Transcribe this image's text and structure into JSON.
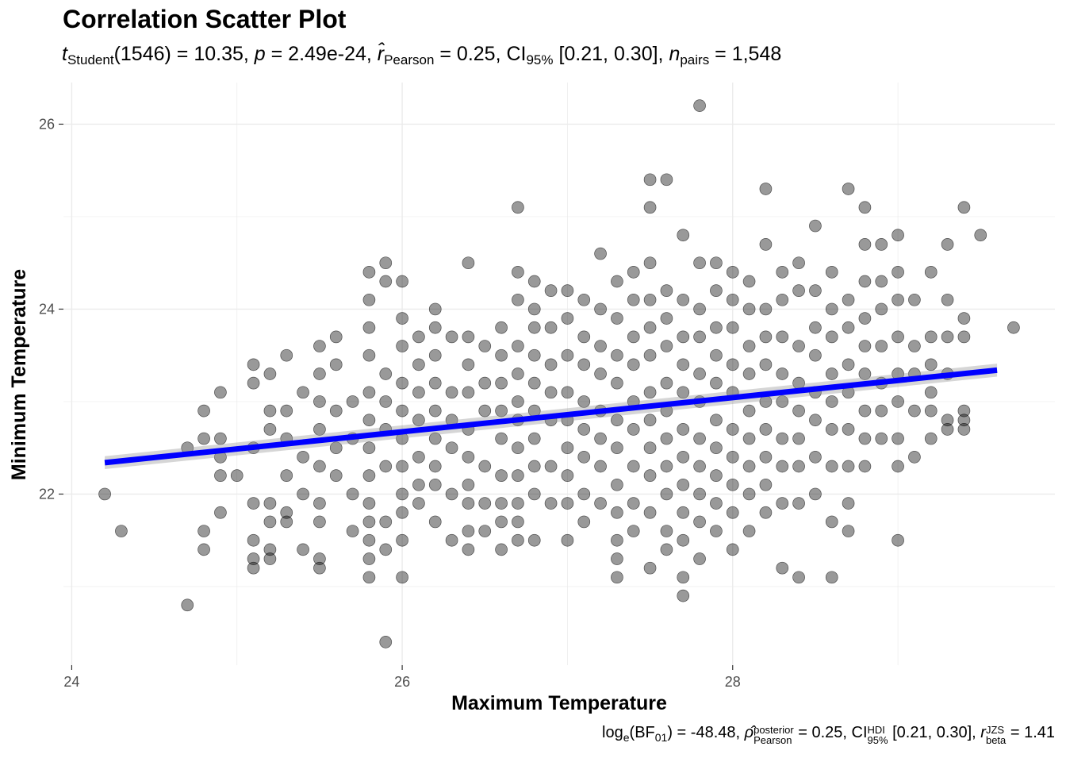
{
  "chart_data": {
    "type": "scatter",
    "title": "Correlation Scatter Plot",
    "subtitle": {
      "t_symbol": "t",
      "t_sub": "Student",
      "df": "(1546)",
      "t_value": " = 10.35, ",
      "p_symbol": "p",
      "p_value": " = 2.49e-24, ",
      "r_symbol": "r̂",
      "r_sub": "Pearson",
      "r_value": " = 0.25, CI",
      "ci_sub": "95%",
      "ci_value": " [0.21, 0.30], ",
      "n_symbol": "n",
      "n_sub": "pairs",
      "n_value": " = 1,548"
    },
    "caption": {
      "log_text": "log",
      "log_sub": "e",
      "bf_text": "(BF",
      "bf_sub": "01",
      "bf_value": ") = -48.48, ",
      "rho_symbol": "ρ̂",
      "rho_sup": "posterior",
      "rho_sub": "Pearson",
      "rho_value": " = 0.25, CI",
      "ci_sup": "HDI",
      "ci_sub": "95%",
      "ci_value": " [0.21, 0.30], ",
      "r_symbol": "r",
      "r_sup": "JZS",
      "r_sub": "beta",
      "r_value": " = 1.41"
    },
    "xlabel": "Maximum Temperature",
    "ylabel": "Minimum Temperature",
    "xlim": [
      23.95,
      29.95
    ],
    "ylim": [
      20.15,
      26.45
    ],
    "x_ticks": [
      24,
      26,
      28
    ],
    "y_ticks": [
      22,
      24,
      26
    ],
    "x_tick_labels": [
      "24",
      "26",
      "28"
    ],
    "y_tick_labels": [
      "22",
      "24",
      "26"
    ],
    "grid": true,
    "fit_line": {
      "x_start": 24.2,
      "y_start": 22.34,
      "x_end": 29.6,
      "y_end": 23.34,
      "ci_halfwidth": 0.07,
      "color": "#0000ff"
    },
    "point_color": "#000000",
    "point_opacity": 0.4,
    "point_count": 1548,
    "points": [
      [
        24.2,
        22.0
      ],
      [
        24.3,
        21.6
      ],
      [
        24.7,
        20.8
      ],
      [
        24.7,
        22.5
      ],
      [
        24.8,
        22.9
      ],
      [
        24.8,
        22.6
      ],
      [
        24.8,
        21.6
      ],
      [
        24.8,
        21.4
      ],
      [
        24.9,
        23.1
      ],
      [
        24.9,
        22.6
      ],
      [
        24.9,
        22.4
      ],
      [
        24.9,
        22.2
      ],
      [
        24.9,
        21.8
      ],
      [
        25.0,
        22.2
      ],
      [
        25.1,
        23.4
      ],
      [
        25.1,
        23.2
      ],
      [
        25.1,
        22.5
      ],
      [
        25.1,
        21.9
      ],
      [
        25.1,
        21.5
      ],
      [
        25.1,
        21.3
      ],
      [
        25.1,
        21.2
      ],
      [
        25.2,
        23.3
      ],
      [
        25.2,
        22.9
      ],
      [
        25.2,
        22.7
      ],
      [
        25.2,
        21.9
      ],
      [
        25.2,
        21.7
      ],
      [
        25.2,
        21.4
      ],
      [
        25.2,
        21.3
      ],
      [
        25.3,
        23.5
      ],
      [
        25.3,
        22.9
      ],
      [
        25.3,
        22.6
      ],
      [
        25.3,
        22.2
      ],
      [
        25.3,
        21.8
      ],
      [
        25.3,
        21.7
      ],
      [
        25.4,
        23.1
      ],
      [
        25.4,
        22.4
      ],
      [
        25.4,
        22.0
      ],
      [
        25.4,
        21.4
      ],
      [
        25.5,
        23.6
      ],
      [
        25.5,
        23.3
      ],
      [
        25.5,
        23.0
      ],
      [
        25.5,
        22.7
      ],
      [
        25.5,
        22.3
      ],
      [
        25.5,
        21.9
      ],
      [
        25.5,
        21.7
      ],
      [
        25.5,
        21.3
      ],
      [
        25.5,
        21.2
      ],
      [
        25.6,
        23.7
      ],
      [
        25.6,
        23.4
      ],
      [
        25.6,
        22.9
      ],
      [
        25.6,
        22.5
      ],
      [
        25.6,
        22.2
      ],
      [
        25.7,
        23.0
      ],
      [
        25.7,
        22.6
      ],
      [
        25.7,
        22.0
      ],
      [
        25.7,
        21.6
      ],
      [
        25.8,
        24.4
      ],
      [
        25.8,
        24.1
      ],
      [
        25.8,
        23.8
      ],
      [
        25.8,
        23.5
      ],
      [
        25.8,
        23.1
      ],
      [
        25.8,
        22.8
      ],
      [
        25.8,
        22.5
      ],
      [
        25.8,
        22.2
      ],
      [
        25.8,
        21.9
      ],
      [
        25.8,
        21.7
      ],
      [
        25.8,
        21.5
      ],
      [
        25.8,
        21.3
      ],
      [
        25.8,
        21.1
      ],
      [
        25.9,
        24.5
      ],
      [
        25.9,
        24.3
      ],
      [
        25.9,
        23.3
      ],
      [
        25.9,
        23.0
      ],
      [
        25.9,
        22.7
      ],
      [
        25.9,
        22.3
      ],
      [
        25.9,
        21.7
      ],
      [
        25.9,
        21.4
      ],
      [
        25.9,
        20.4
      ],
      [
        26.0,
        24.3
      ],
      [
        26.0,
        23.9
      ],
      [
        26.0,
        23.6
      ],
      [
        26.0,
        23.2
      ],
      [
        26.0,
        22.9
      ],
      [
        26.0,
        22.6
      ],
      [
        26.0,
        22.3
      ],
      [
        26.0,
        22.0
      ],
      [
        26.0,
        21.8
      ],
      [
        26.0,
        21.5
      ],
      [
        26.0,
        21.1
      ],
      [
        26.1,
        23.7
      ],
      [
        26.1,
        23.4
      ],
      [
        26.1,
        23.1
      ],
      [
        26.1,
        22.8
      ],
      [
        26.1,
        22.4
      ],
      [
        26.1,
        22.1
      ],
      [
        26.1,
        21.9
      ],
      [
        26.2,
        24.0
      ],
      [
        26.2,
        23.8
      ],
      [
        26.2,
        23.5
      ],
      [
        26.2,
        23.2
      ],
      [
        26.2,
        22.9
      ],
      [
        26.2,
        22.6
      ],
      [
        26.2,
        22.3
      ],
      [
        26.2,
        22.1
      ],
      [
        26.2,
        21.7
      ],
      [
        26.3,
        23.7
      ],
      [
        26.3,
        23.1
      ],
      [
        26.3,
        22.8
      ],
      [
        26.3,
        22.5
      ],
      [
        26.3,
        22.0
      ],
      [
        26.3,
        21.5
      ],
      [
        26.4,
        24.5
      ],
      [
        26.4,
        23.7
      ],
      [
        26.4,
        23.4
      ],
      [
        26.4,
        23.1
      ],
      [
        26.4,
        22.7
      ],
      [
        26.4,
        22.4
      ],
      [
        26.4,
        22.1
      ],
      [
        26.4,
        21.9
      ],
      [
        26.4,
        21.6
      ],
      [
        26.4,
        21.4
      ],
      [
        26.5,
        23.6
      ],
      [
        26.5,
        23.2
      ],
      [
        26.5,
        22.9
      ],
      [
        26.5,
        22.3
      ],
      [
        26.5,
        21.9
      ],
      [
        26.5,
        21.6
      ],
      [
        26.6,
        23.8
      ],
      [
        26.6,
        23.5
      ],
      [
        26.6,
        23.2
      ],
      [
        26.6,
        22.9
      ],
      [
        26.6,
        22.6
      ],
      [
        26.6,
        22.2
      ],
      [
        26.6,
        21.9
      ],
      [
        26.6,
        21.7
      ],
      [
        26.6,
        21.4
      ],
      [
        26.7,
        25.1
      ],
      [
        26.7,
        24.4
      ],
      [
        26.7,
        24.1
      ],
      [
        26.7,
        23.6
      ],
      [
        26.7,
        23.3
      ],
      [
        26.7,
        23.0
      ],
      [
        26.7,
        22.8
      ],
      [
        26.7,
        22.5
      ],
      [
        26.7,
        22.2
      ],
      [
        26.7,
        21.9
      ],
      [
        26.7,
        21.7
      ],
      [
        26.7,
        21.5
      ],
      [
        26.8,
        24.3
      ],
      [
        26.8,
        24.0
      ],
      [
        26.8,
        23.8
      ],
      [
        26.8,
        23.5
      ],
      [
        26.8,
        23.2
      ],
      [
        26.8,
        22.9
      ],
      [
        26.8,
        22.6
      ],
      [
        26.8,
        22.3
      ],
      [
        26.8,
        22.0
      ],
      [
        26.8,
        21.5
      ],
      [
        26.9,
        24.2
      ],
      [
        26.9,
        23.8
      ],
      [
        26.9,
        23.4
      ],
      [
        26.9,
        23.1
      ],
      [
        26.9,
        22.8
      ],
      [
        26.9,
        22.3
      ],
      [
        26.9,
        21.9
      ],
      [
        27.0,
        24.2
      ],
      [
        27.0,
        23.9
      ],
      [
        27.0,
        23.5
      ],
      [
        27.0,
        23.1
      ],
      [
        27.0,
        22.8
      ],
      [
        27.0,
        22.5
      ],
      [
        27.0,
        22.2
      ],
      [
        27.0,
        21.9
      ],
      [
        27.0,
        21.5
      ],
      [
        27.1,
        24.1
      ],
      [
        27.1,
        23.7
      ],
      [
        27.1,
        23.4
      ],
      [
        27.1,
        23.0
      ],
      [
        27.1,
        22.7
      ],
      [
        27.1,
        22.4
      ],
      [
        27.1,
        22.0
      ],
      [
        27.1,
        21.7
      ],
      [
        27.2,
        24.6
      ],
      [
        27.2,
        24.0
      ],
      [
        27.2,
        23.6
      ],
      [
        27.2,
        23.3
      ],
      [
        27.2,
        22.9
      ],
      [
        27.2,
        22.6
      ],
      [
        27.2,
        22.3
      ],
      [
        27.2,
        21.9
      ],
      [
        27.3,
        24.3
      ],
      [
        27.3,
        23.9
      ],
      [
        27.3,
        23.5
      ],
      [
        27.3,
        23.2
      ],
      [
        27.3,
        22.8
      ],
      [
        27.3,
        22.5
      ],
      [
        27.3,
        22.1
      ],
      [
        27.3,
        21.8
      ],
      [
        27.3,
        21.5
      ],
      [
        27.3,
        21.3
      ],
      [
        27.3,
        21.1
      ],
      [
        27.4,
        24.4
      ],
      [
        27.4,
        24.1
      ],
      [
        27.4,
        23.7
      ],
      [
        27.4,
        23.4
      ],
      [
        27.4,
        23.0
      ],
      [
        27.4,
        22.7
      ],
      [
        27.4,
        22.3
      ],
      [
        27.4,
        21.9
      ],
      [
        27.4,
        21.6
      ],
      [
        27.5,
        25.4
      ],
      [
        27.5,
        25.1
      ],
      [
        27.5,
        24.5
      ],
      [
        27.5,
        24.1
      ],
      [
        27.5,
        23.8
      ],
      [
        27.5,
        23.5
      ],
      [
        27.5,
        23.1
      ],
      [
        27.5,
        22.8
      ],
      [
        27.5,
        22.5
      ],
      [
        27.5,
        22.2
      ],
      [
        27.5,
        21.8
      ],
      [
        27.5,
        21.2
      ],
      [
        27.6,
        25.4
      ],
      [
        27.6,
        24.2
      ],
      [
        27.6,
        23.9
      ],
      [
        27.6,
        23.6
      ],
      [
        27.6,
        23.2
      ],
      [
        27.6,
        22.9
      ],
      [
        27.6,
        22.6
      ],
      [
        27.6,
        22.3
      ],
      [
        27.6,
        22.0
      ],
      [
        27.6,
        21.6
      ],
      [
        27.6,
        21.4
      ],
      [
        27.7,
        24.8
      ],
      [
        27.7,
        24.1
      ],
      [
        27.7,
        23.7
      ],
      [
        27.7,
        23.4
      ],
      [
        27.7,
        23.1
      ],
      [
        27.7,
        22.7
      ],
      [
        27.7,
        22.4
      ],
      [
        27.7,
        22.1
      ],
      [
        27.7,
        21.8
      ],
      [
        27.7,
        21.5
      ],
      [
        27.7,
        21.1
      ],
      [
        27.7,
        20.9
      ],
      [
        27.8,
        26.2
      ],
      [
        27.8,
        24.5
      ],
      [
        27.8,
        24.0
      ],
      [
        27.8,
        23.7
      ],
      [
        27.8,
        23.3
      ],
      [
        27.8,
        23.0
      ],
      [
        27.8,
        22.6
      ],
      [
        27.8,
        22.3
      ],
      [
        27.8,
        22.0
      ],
      [
        27.8,
        21.7
      ],
      [
        27.8,
        21.3
      ],
      [
        27.9,
        24.5
      ],
      [
        27.9,
        24.2
      ],
      [
        27.9,
        23.8
      ],
      [
        27.9,
        23.5
      ],
      [
        27.9,
        23.2
      ],
      [
        27.9,
        22.8
      ],
      [
        27.9,
        22.5
      ],
      [
        27.9,
        22.2
      ],
      [
        27.9,
        21.9
      ],
      [
        27.9,
        21.6
      ],
      [
        28.0,
        24.4
      ],
      [
        28.0,
        24.1
      ],
      [
        28.0,
        23.8
      ],
      [
        28.0,
        23.4
      ],
      [
        28.0,
        23.1
      ],
      [
        28.0,
        22.7
      ],
      [
        28.0,
        22.4
      ],
      [
        28.0,
        22.1
      ],
      [
        28.0,
        21.8
      ],
      [
        28.0,
        21.4
      ],
      [
        28.1,
        24.3
      ],
      [
        28.1,
        24.0
      ],
      [
        28.1,
        23.6
      ],
      [
        28.1,
        23.3
      ],
      [
        28.1,
        22.9
      ],
      [
        28.1,
        22.6
      ],
      [
        28.1,
        22.3
      ],
      [
        28.1,
        22.0
      ],
      [
        28.1,
        21.6
      ],
      [
        28.2,
        25.3
      ],
      [
        28.2,
        24.7
      ],
      [
        28.2,
        24.0
      ],
      [
        28.2,
        23.7
      ],
      [
        28.2,
        23.4
      ],
      [
        28.2,
        23.0
      ],
      [
        28.2,
        22.7
      ],
      [
        28.2,
        22.4
      ],
      [
        28.2,
        22.1
      ],
      [
        28.2,
        21.8
      ],
      [
        28.3,
        24.4
      ],
      [
        28.3,
        24.1
      ],
      [
        28.3,
        23.7
      ],
      [
        28.3,
        23.3
      ],
      [
        28.3,
        23.0
      ],
      [
        28.3,
        22.6
      ],
      [
        28.3,
        22.3
      ],
      [
        28.3,
        21.9
      ],
      [
        28.3,
        21.2
      ],
      [
        28.4,
        24.5
      ],
      [
        28.4,
        24.2
      ],
      [
        28.4,
        23.6
      ],
      [
        28.4,
        23.2
      ],
      [
        28.4,
        22.9
      ],
      [
        28.4,
        22.6
      ],
      [
        28.4,
        22.3
      ],
      [
        28.4,
        21.9
      ],
      [
        28.4,
        21.1
      ],
      [
        28.5,
        24.9
      ],
      [
        28.5,
        24.2
      ],
      [
        28.5,
        23.8
      ],
      [
        28.5,
        23.5
      ],
      [
        28.5,
        23.1
      ],
      [
        28.5,
        22.8
      ],
      [
        28.5,
        22.4
      ],
      [
        28.5,
        22.0
      ],
      [
        28.6,
        24.4
      ],
      [
        28.6,
        24.0
      ],
      [
        28.6,
        23.7
      ],
      [
        28.6,
        23.3
      ],
      [
        28.6,
        23.0
      ],
      [
        28.6,
        22.7
      ],
      [
        28.6,
        22.3
      ],
      [
        28.6,
        21.7
      ],
      [
        28.6,
        21.1
      ],
      [
        28.7,
        25.3
      ],
      [
        28.7,
        24.1
      ],
      [
        28.7,
        23.8
      ],
      [
        28.7,
        23.4
      ],
      [
        28.7,
        23.1
      ],
      [
        28.7,
        22.7
      ],
      [
        28.7,
        22.3
      ],
      [
        28.7,
        21.9
      ],
      [
        28.7,
        21.6
      ],
      [
        28.8,
        25.1
      ],
      [
        28.8,
        24.7
      ],
      [
        28.8,
        24.3
      ],
      [
        28.8,
        23.9
      ],
      [
        28.8,
        23.6
      ],
      [
        28.8,
        23.3
      ],
      [
        28.8,
        22.9
      ],
      [
        28.8,
        22.6
      ],
      [
        28.8,
        22.3
      ],
      [
        28.9,
        24.7
      ],
      [
        28.9,
        24.3
      ],
      [
        28.9,
        24.0
      ],
      [
        28.9,
        23.6
      ],
      [
        28.9,
        23.2
      ],
      [
        28.9,
        22.9
      ],
      [
        28.9,
        22.6
      ],
      [
        29.0,
        24.8
      ],
      [
        29.0,
        24.4
      ],
      [
        29.0,
        24.1
      ],
      [
        29.0,
        23.7
      ],
      [
        29.0,
        23.3
      ],
      [
        29.0,
        23.0
      ],
      [
        29.0,
        22.6
      ],
      [
        29.0,
        22.3
      ],
      [
        29.0,
        21.5
      ],
      [
        29.1,
        24.1
      ],
      [
        29.1,
        23.6
      ],
      [
        29.1,
        23.3
      ],
      [
        29.1,
        22.9
      ],
      [
        29.1,
        22.4
      ],
      [
        29.2,
        24.4
      ],
      [
        29.2,
        23.7
      ],
      [
        29.2,
        23.4
      ],
      [
        29.2,
        23.1
      ],
      [
        29.2,
        22.9
      ],
      [
        29.2,
        22.6
      ],
      [
        29.3,
        24.7
      ],
      [
        29.3,
        24.1
      ],
      [
        29.3,
        23.7
      ],
      [
        29.3,
        23.3
      ],
      [
        29.3,
        22.8
      ],
      [
        29.3,
        22.7
      ],
      [
        29.4,
        25.1
      ],
      [
        29.4,
        23.9
      ],
      [
        29.4,
        23.7
      ],
      [
        29.4,
        22.9
      ],
      [
        29.4,
        22.8
      ],
      [
        29.4,
        22.7
      ],
      [
        29.5,
        24.8
      ],
      [
        29.7,
        23.8
      ]
    ]
  }
}
